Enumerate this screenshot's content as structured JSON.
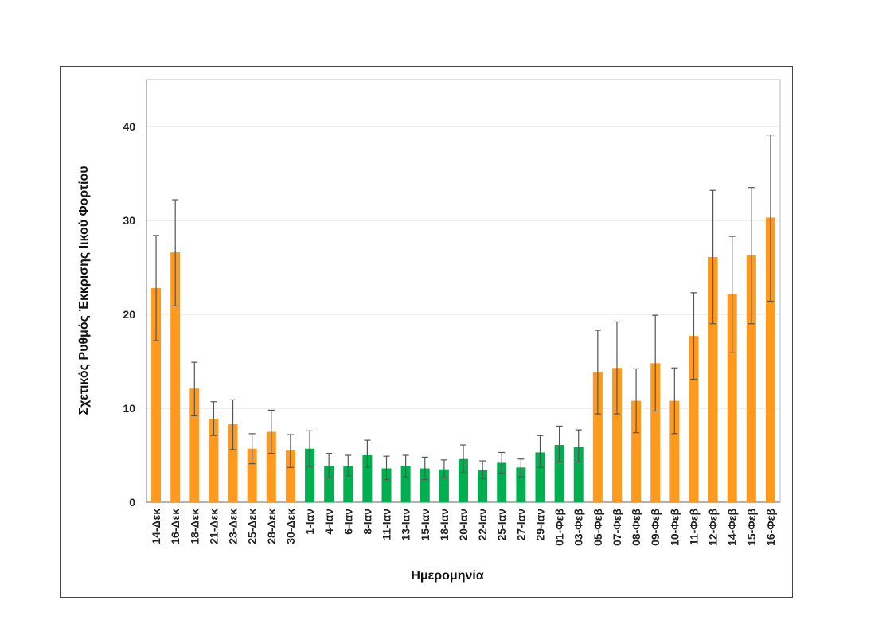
{
  "chart_data": {
    "type": "bar",
    "title": "",
    "xlabel": "Ημερομηνία",
    "ylabel": "Σχετικός Ρυθμός Έκκρισης Ιικού Φορτίου",
    "ylim": [
      0,
      45
    ],
    "yticks": [
      0,
      10,
      20,
      30,
      40
    ],
    "grid": true,
    "colors": {
      "orange": "#FF9A1F",
      "green": "#00B050",
      "error": "#555555"
    },
    "categories": [
      "14-Δεκ",
      "16-Δεκ",
      "18-Δεκ",
      "21-Δεκ",
      "23-Δεκ",
      "25-Δεκ",
      "28-Δεκ",
      "30-Δεκ",
      "1-Ιαν",
      "4-Ιαν",
      "6-Ιαν",
      "8-Ιαν",
      "11-Ιαν",
      "13-Ιαν",
      "15-Ιαν",
      "18-Ιαν",
      "20-Ιαν",
      "22-Ιαν",
      "25-Ιαν",
      "27-Ιαν",
      "29-Ιαν",
      "01-Φεβ",
      "03-Φεβ",
      "05-Φεβ",
      "07-Φεβ",
      "08-Φεβ",
      "09-Φεβ",
      "10-Φεβ",
      "11-Φεβ",
      "12-Φεβ",
      "14-Φεβ",
      "15-Φεβ",
      "16-Φεβ"
    ],
    "values": [
      22.8,
      26.6,
      12.1,
      8.9,
      8.3,
      5.7,
      7.5,
      5.5,
      5.7,
      3.9,
      3.9,
      5.0,
      3.6,
      3.9,
      3.6,
      3.5,
      4.6,
      3.4,
      4.2,
      3.7,
      5.3,
      6.1,
      5.9,
      13.9,
      14.3,
      10.8,
      14.8,
      10.8,
      17.7,
      26.1,
      22.2,
      26.3,
      30.3
    ],
    "error_low": [
      17.2,
      20.9,
      9.2,
      7.1,
      5.6,
      4.1,
      5.2,
      3.7,
      3.8,
      2.6,
      2.8,
      3.7,
      2.4,
      2.7,
      2.4,
      2.6,
      3.2,
      2.5,
      3.1,
      2.7,
      3.7,
      4.3,
      4.3,
      9.4,
      9.4,
      7.4,
      9.7,
      7.3,
      13.1,
      19.0,
      15.9,
      19.0,
      21.4
    ],
    "error_high": [
      28.4,
      32.2,
      14.9,
      10.7,
      10.9,
      7.3,
      9.8,
      7.2,
      7.6,
      5.2,
      5.0,
      6.6,
      4.9,
      5.0,
      4.8,
      4.5,
      6.1,
      4.4,
      5.3,
      4.6,
      7.1,
      8.1,
      7.7,
      18.3,
      19.2,
      14.2,
      19.9,
      14.3,
      22.3,
      33.2,
      28.3,
      33.5,
      39.1
    ],
    "bar_color": [
      "orange",
      "orange",
      "orange",
      "orange",
      "orange",
      "orange",
      "orange",
      "orange",
      "green",
      "green",
      "green",
      "green",
      "green",
      "green",
      "green",
      "green",
      "green",
      "green",
      "green",
      "green",
      "green",
      "green",
      "green",
      "orange",
      "orange",
      "orange",
      "orange",
      "orange",
      "orange",
      "orange",
      "orange",
      "orange",
      "orange"
    ]
  }
}
